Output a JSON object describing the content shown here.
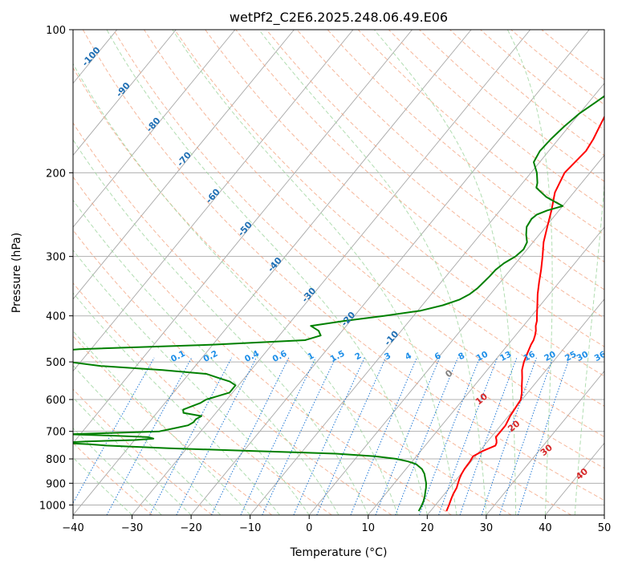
{
  "chart_data": {
    "type": "skew-t",
    "title": "wetPf2_C2E6.2025.248.06.49.E06",
    "xlabel": "Temperature (°C)",
    "ylabel": "Pressure (hPa)",
    "xlim": [
      -40,
      50
    ],
    "ylim_hpa": [
      1050,
      100
    ],
    "x_ticks": [
      -40,
      -30,
      -20,
      -10,
      0,
      10,
      20,
      30,
      40,
      50
    ],
    "x_tick_labels": [
      "−40",
      "−30",
      "−20",
      "−10",
      "0",
      "10",
      "20",
      "30",
      "40",
      "50"
    ],
    "y_ticks": [
      1000,
      900,
      800,
      700,
      600,
      500,
      400,
      300,
      200,
      100
    ],
    "y_tick_labels": [
      "1000",
      "900",
      "800",
      "700",
      "600",
      "500",
      "400",
      "300",
      "200",
      "100"
    ],
    "dry_adiabat_labels": [
      {
        "text": "-100",
        "temp": -100,
        "p": 115
      },
      {
        "text": "-90",
        "temp": -90,
        "p": 135
      },
      {
        "text": "-80",
        "temp": -80,
        "p": 160
      },
      {
        "text": "-70",
        "temp": -70,
        "p": 189
      },
      {
        "text": "-60",
        "temp": -60,
        "p": 226
      },
      {
        "text": "-50",
        "temp": -50,
        "p": 265
      },
      {
        "text": "-40",
        "temp": -40,
        "p": 315
      },
      {
        "text": "-30",
        "temp": -30,
        "p": 365
      },
      {
        "text": "-20",
        "temp": -20,
        "p": 410
      },
      {
        "text": "-10",
        "temp": -10,
        "p": 450
      }
    ],
    "mixing_ratio_labels": [
      "0.1",
      "0.2",
      "0.4",
      "0.6",
      "1",
      "1.5",
      "2",
      "3",
      "4",
      "6",
      "8",
      "10",
      "13",
      "16",
      "20",
      "25",
      "30",
      "36"
    ],
    "mixing_ratio_label_temps": [
      -22,
      -16.5,
      -9.5,
      -4.8,
      0.5,
      5,
      8.5,
      13.5,
      17,
      22,
      26,
      29.5,
      33.5,
      37.5,
      41,
      44.5,
      46.5,
      49.5
    ],
    "moist_adiabat_labels": [
      {
        "text": "0",
        "temp": 24,
        "p": 535
      },
      {
        "text": "10",
        "temp": 29.5,
        "p": 605
      },
      {
        "text": "20",
        "temp": 35,
        "p": 690
      },
      {
        "text": "30",
        "temp": 40.5,
        "p": 775
      },
      {
        "text": "40",
        "temp": 46.5,
        "p": 870
      }
    ],
    "series": [
      {
        "name": "temperature",
        "color": "#ff0000",
        "p": [
          1030,
          1000,
          970,
          950,
          920,
          900,
          880,
          860,
          840,
          810,
          790,
          770,
          750,
          740,
          730,
          720,
          700,
          680,
          650,
          620,
          600,
          580,
          560,
          540,
          520,
          500,
          490,
          480,
          460,
          450,
          440,
          430,
          420,
          410,
          400,
          380,
          360,
          340,
          320,
          300,
          280,
          260,
          240,
          220,
          200,
          190,
          180,
          170,
          160,
          150,
          140,
          130,
          120,
          110,
          100
        ],
        "t": [
          22.7,
          22.3,
          21.8,
          21.5,
          21.2,
          20.8,
          20.4,
          20.1,
          19.9,
          19.8,
          19.6,
          20.5,
          21.9,
          21.7,
          21.3,
          20.8,
          20.8,
          20.8,
          20.3,
          20.0,
          19.8,
          19.0,
          18.0,
          17.0,
          15.9,
          15.1,
          14.8,
          14.5,
          13.9,
          13.7,
          13.3,
          12.8,
          12.1,
          11.6,
          10.9,
          9.5,
          8.0,
          6.6,
          5.2,
          3.6,
          1.8,
          0.3,
          -1.3,
          -3.2,
          -4.3,
          -4.0,
          -3.7,
          -4.1,
          -4.8,
          -5.5,
          -5.7,
          -5.0,
          -3.8,
          -2.6,
          -0.7
        ]
      },
      {
        "name": "dewpoint",
        "color": "#008000",
        "p": [
          1030,
          1000,
          980,
          960,
          940,
          920,
          900,
          880,
          860,
          840,
          820,
          810,
          800,
          790,
          780,
          770,
          760,
          750,
          745,
          740,
          735,
          730,
          725,
          720,
          715,
          710,
          705,
          700,
          690,
          680,
          670,
          660,
          650,
          640,
          630,
          620,
          610,
          600,
          590,
          580,
          570,
          560,
          550,
          540,
          530,
          520,
          510,
          500,
          490,
          480,
          475,
          470,
          460,
          450,
          440,
          430,
          420,
          410,
          400,
          390,
          380,
          370,
          360,
          350,
          340,
          330,
          320,
          310,
          300,
          290,
          280,
          270,
          260,
          250,
          245,
          240,
          235,
          230,
          225,
          220,
          215,
          210,
          200,
          190,
          180,
          170,
          160,
          150,
          140,
          130,
          120,
          110,
          100
        ],
        "t": [
          18.0,
          17.7,
          17.4,
          17.0,
          16.5,
          16.0,
          15.4,
          14.6,
          13.8,
          12.7,
          11.0,
          9.3,
          7.0,
          3.0,
          -4.0,
          -18.0,
          -33.0,
          -44.0,
          -47.0,
          -52.0,
          -48.0,
          -40.0,
          -37.0,
          -38.0,
          -44.0,
          -52.0,
          -44.0,
          -37.0,
          -35.0,
          -33.0,
          -32.5,
          -32.5,
          -32.0,
          -35.5,
          -36.0,
          -35.0,
          -34.0,
          -33.5,
          -32.0,
          -30.5,
          -30.5,
          -30.5,
          -32.0,
          -34.5,
          -37.0,
          -45.0,
          -56.0,
          -62.0,
          -64.0,
          -66.0,
          -66.0,
          -62.0,
          -40.0,
          -25.0,
          -23.0,
          -24.0,
          -26.0,
          -21.0,
          -15.0,
          -9.5,
          -6.5,
          -4.5,
          -3.5,
          -3.0,
          -2.8,
          -2.6,
          -2.5,
          -2.0,
          -1.0,
          -0.6,
          -1.0,
          -2.2,
          -3.2,
          -3.5,
          -3.2,
          -2.0,
          0.0,
          -2.0,
          -4.0,
          -5.5,
          -7.0,
          -7.5,
          -9.0,
          -11.0,
          -11.5,
          -11.3,
          -10.8,
          -10.0,
          -8.5,
          -7.0,
          -4.5,
          -2.0,
          1.5
        ]
      }
    ]
  }
}
